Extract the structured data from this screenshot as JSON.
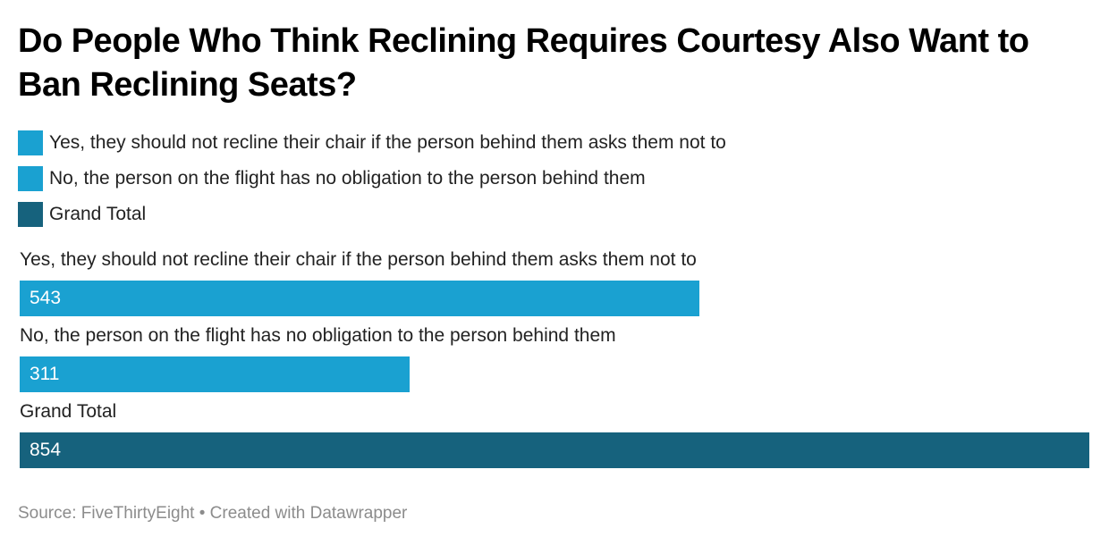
{
  "title": "Do People Who Think Reclining Requires Courtesy Also Want to Ban Reclining Seats?",
  "legend": [
    {
      "label": "Yes, they should not recline their chair if the person behind them asks them not to",
      "color": "#1aa1d1"
    },
    {
      "label": "No, the person on the flight has no obligation to the person behind them",
      "color": "#1aa1d1"
    },
    {
      "label": "Grand Total",
      "color": "#16627d"
    }
  ],
  "footer": {
    "source": "Source: FiveThirtyEight • Created with Datawrapper"
  },
  "chart_data": {
    "type": "bar",
    "orientation": "horizontal",
    "title": "Do People Who Think Reclining Requires Courtesy Also Want to Ban Reclining Seats?",
    "categories": [
      "Yes, they should not recline their chair if the person behind them asks them not to",
      "No, the person on the flight has no obligation to the person behind them",
      "Grand Total"
    ],
    "values": [
      543,
      311,
      854
    ],
    "value_labels": [
      "543",
      "311",
      "854"
    ],
    "colors": [
      "#1aa1d1",
      "#1aa1d1",
      "#16627d"
    ],
    "xlim": [
      0,
      854
    ],
    "grid": false,
    "legend_position": "top-left"
  }
}
